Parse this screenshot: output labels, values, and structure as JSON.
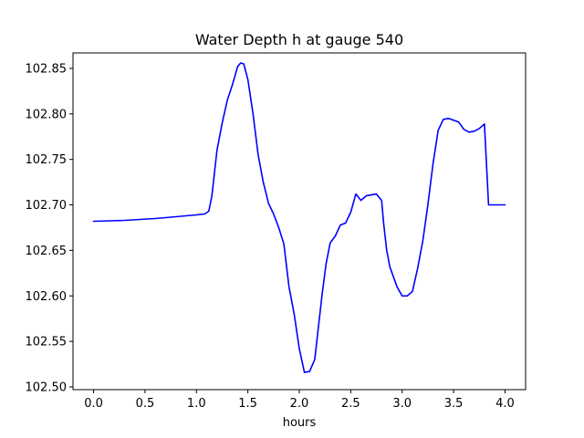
{
  "chart_data": {
    "type": "line",
    "title": "Water Depth h at gauge 540",
    "xlabel": "hours",
    "ylabel": "",
    "xlim": [
      -0.2,
      4.2
    ],
    "ylim": [
      102.497,
      102.867
    ],
    "xticks": [
      "0.0",
      "0.5",
      "1.0",
      "1.5",
      "2.0",
      "2.5",
      "3.0",
      "3.5",
      "4.0"
    ],
    "yticks": [
      "102.50",
      "102.55",
      "102.60",
      "102.65",
      "102.70",
      "102.75",
      "102.80",
      "102.85"
    ],
    "grid": false,
    "series": [
      {
        "color": "#0000ff",
        "x": [
          0.0,
          0.3,
          0.6,
          0.9,
          1.0,
          1.08,
          1.12,
          1.15,
          1.2,
          1.25,
          1.3,
          1.35,
          1.4,
          1.43,
          1.46,
          1.5,
          1.55,
          1.6,
          1.65,
          1.7,
          1.75,
          1.8,
          1.85,
          1.9,
          1.95,
          2.0,
          2.05,
          2.1,
          2.15,
          2.18,
          2.22,
          2.26,
          2.3,
          2.35,
          2.4,
          2.45,
          2.5,
          2.55,
          2.6,
          2.65,
          2.7,
          2.75,
          2.8,
          2.82,
          2.85,
          2.88,
          2.95,
          3.0,
          3.05,
          3.1,
          3.15,
          3.2,
          3.25,
          3.3,
          3.35,
          3.4,
          3.45,
          3.5,
          3.55,
          3.6,
          3.65,
          3.7,
          3.75,
          3.8,
          3.84,
          3.87,
          3.9,
          3.93,
          3.96,
          4.0
        ],
        "y": [
          102.682,
          102.683,
          102.685,
          102.688,
          102.689,
          102.69,
          102.693,
          102.71,
          102.76,
          102.79,
          102.815,
          102.832,
          102.852,
          102.856,
          102.855,
          102.838,
          102.8,
          102.755,
          102.725,
          102.702,
          102.69,
          102.675,
          102.657,
          102.61,
          102.58,
          102.542,
          102.516,
          102.517,
          102.53,
          102.56,
          102.6,
          102.635,
          102.658,
          102.666,
          102.678,
          102.68,
          102.692,
          102.712,
          102.705,
          102.71,
          102.711,
          102.712,
          102.705,
          102.68,
          102.65,
          102.632,
          102.61,
          102.6,
          102.6,
          102.605,
          102.63,
          102.66,
          102.7,
          102.745,
          102.782,
          102.794,
          102.795,
          102.793,
          102.791,
          102.783,
          102.78,
          102.781,
          102.784,
          102.789,
          102.7,
          102.7,
          102.7,
          102.7,
          102.7,
          102.7
        ]
      }
    ]
  }
}
